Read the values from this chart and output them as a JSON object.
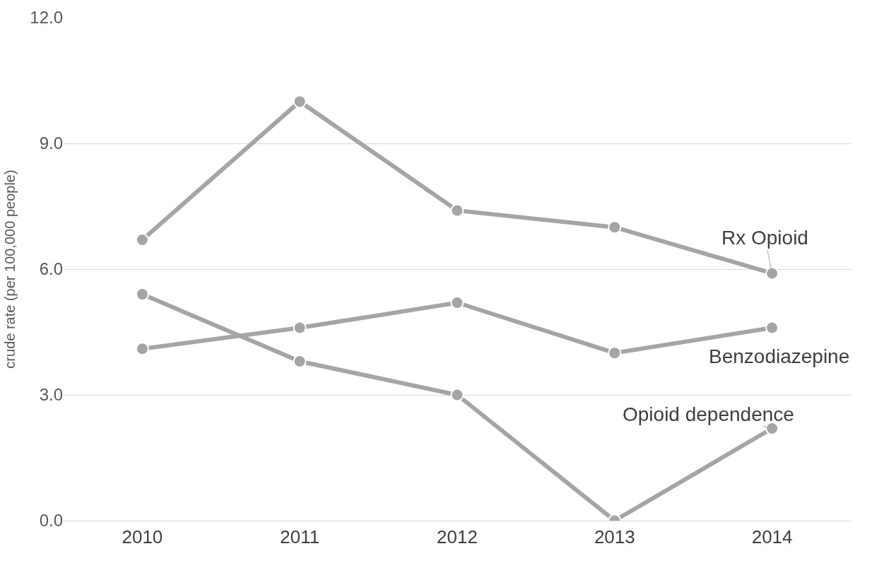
{
  "chart_data": {
    "type": "line",
    "ylabel": "crude rate (per 100,000 people)",
    "categories": [
      "2010",
      "2011",
      "2012",
      "2013",
      "2014"
    ],
    "series": [
      {
        "name": "Rx Opioid",
        "color": "#a5a5a5",
        "values": [
          6.7,
          10.0,
          7.4,
          7.0,
          5.9
        ]
      },
      {
        "name": "Benzodiazepine",
        "color": "#a5a5a5",
        "values": [
          4.1,
          4.6,
          5.2,
          4.0,
          4.6
        ]
      },
      {
        "name": "Opioid dependence",
        "color": "#a5a5a5",
        "values": [
          5.4,
          3.8,
          3.0,
          0.0,
          2.2
        ]
      }
    ],
    "ylim": [
      0,
      12
    ],
    "yticks": [
      {
        "value": 0,
        "label": "0.0"
      },
      {
        "value": 3,
        "label": "3.0"
      },
      {
        "value": 6,
        "label": "6.0"
      },
      {
        "value": 9,
        "label": "9.0"
      },
      {
        "value": 12,
        "label": "12.0"
      }
    ],
    "grid": "y",
    "legend": false,
    "marker": "circle",
    "line_style": "solid"
  }
}
